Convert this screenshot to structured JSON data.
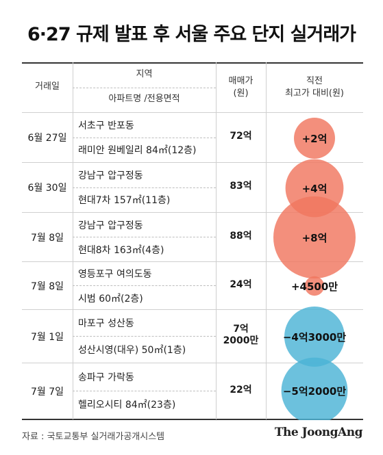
{
  "title": "6·27 규제 발표 후 서울 주요 단지 실거래가",
  "headers": {
    "date": "거래일",
    "region": "지역",
    "apt": "아파트명 /전용면적",
    "price": "매매가\n(원)",
    "diff": "직전\n최고가 대비(원)"
  },
  "rows": [
    {
      "date": "6월 27일",
      "region": "서초구 반포동",
      "apt": "래미안 원베일리 84㎡(12층)",
      "price": "72억",
      "diff_label": "+2억"
    },
    {
      "date": "6월 30일",
      "region": "강남구 압구정동",
      "apt": "현대7차 157㎡(11층)",
      "price": "83억",
      "diff_label": "+4억"
    },
    {
      "date": "7월 8일",
      "region": "강남구 압구정동",
      "apt": "현대8차 163㎡(4층)",
      "price": "88억",
      "diff_label": "+8억"
    },
    {
      "date": "7월 8일",
      "region": "영등포구 여의도동",
      "apt": "시범 60㎡(2층)",
      "price": "24억",
      "diff_label": "+4500만"
    },
    {
      "date": "7월 1일",
      "region": "마포구 성산동",
      "apt": "성산시영(대우) 50㎡(1층)",
      "price": "7억\n2000만",
      "diff_label": "−4억3000만"
    },
    {
      "date": "7월 7일",
      "region": "송파구 가락동",
      "apt": "헬리오시티 84㎡(23층)",
      "price": "22억",
      "diff_label": "−5억2000만"
    }
  ],
  "chart_data": {
    "type": "bubble",
    "categories": [
      "래미안 원베일리",
      "현대7차",
      "현대8차",
      "시범",
      "성산시영(대우)",
      "헬리오시티"
    ],
    "values": [
      2,
      4,
      8,
      0.45,
      -4.3,
      -5.2
    ],
    "unit": "억원",
    "colors": {
      "positive": "#f0765f",
      "negative": "#4cb3d6"
    }
  },
  "source": "자료 : 국토교통부 실거래가공개시스템",
  "logo": "The JoongAng"
}
